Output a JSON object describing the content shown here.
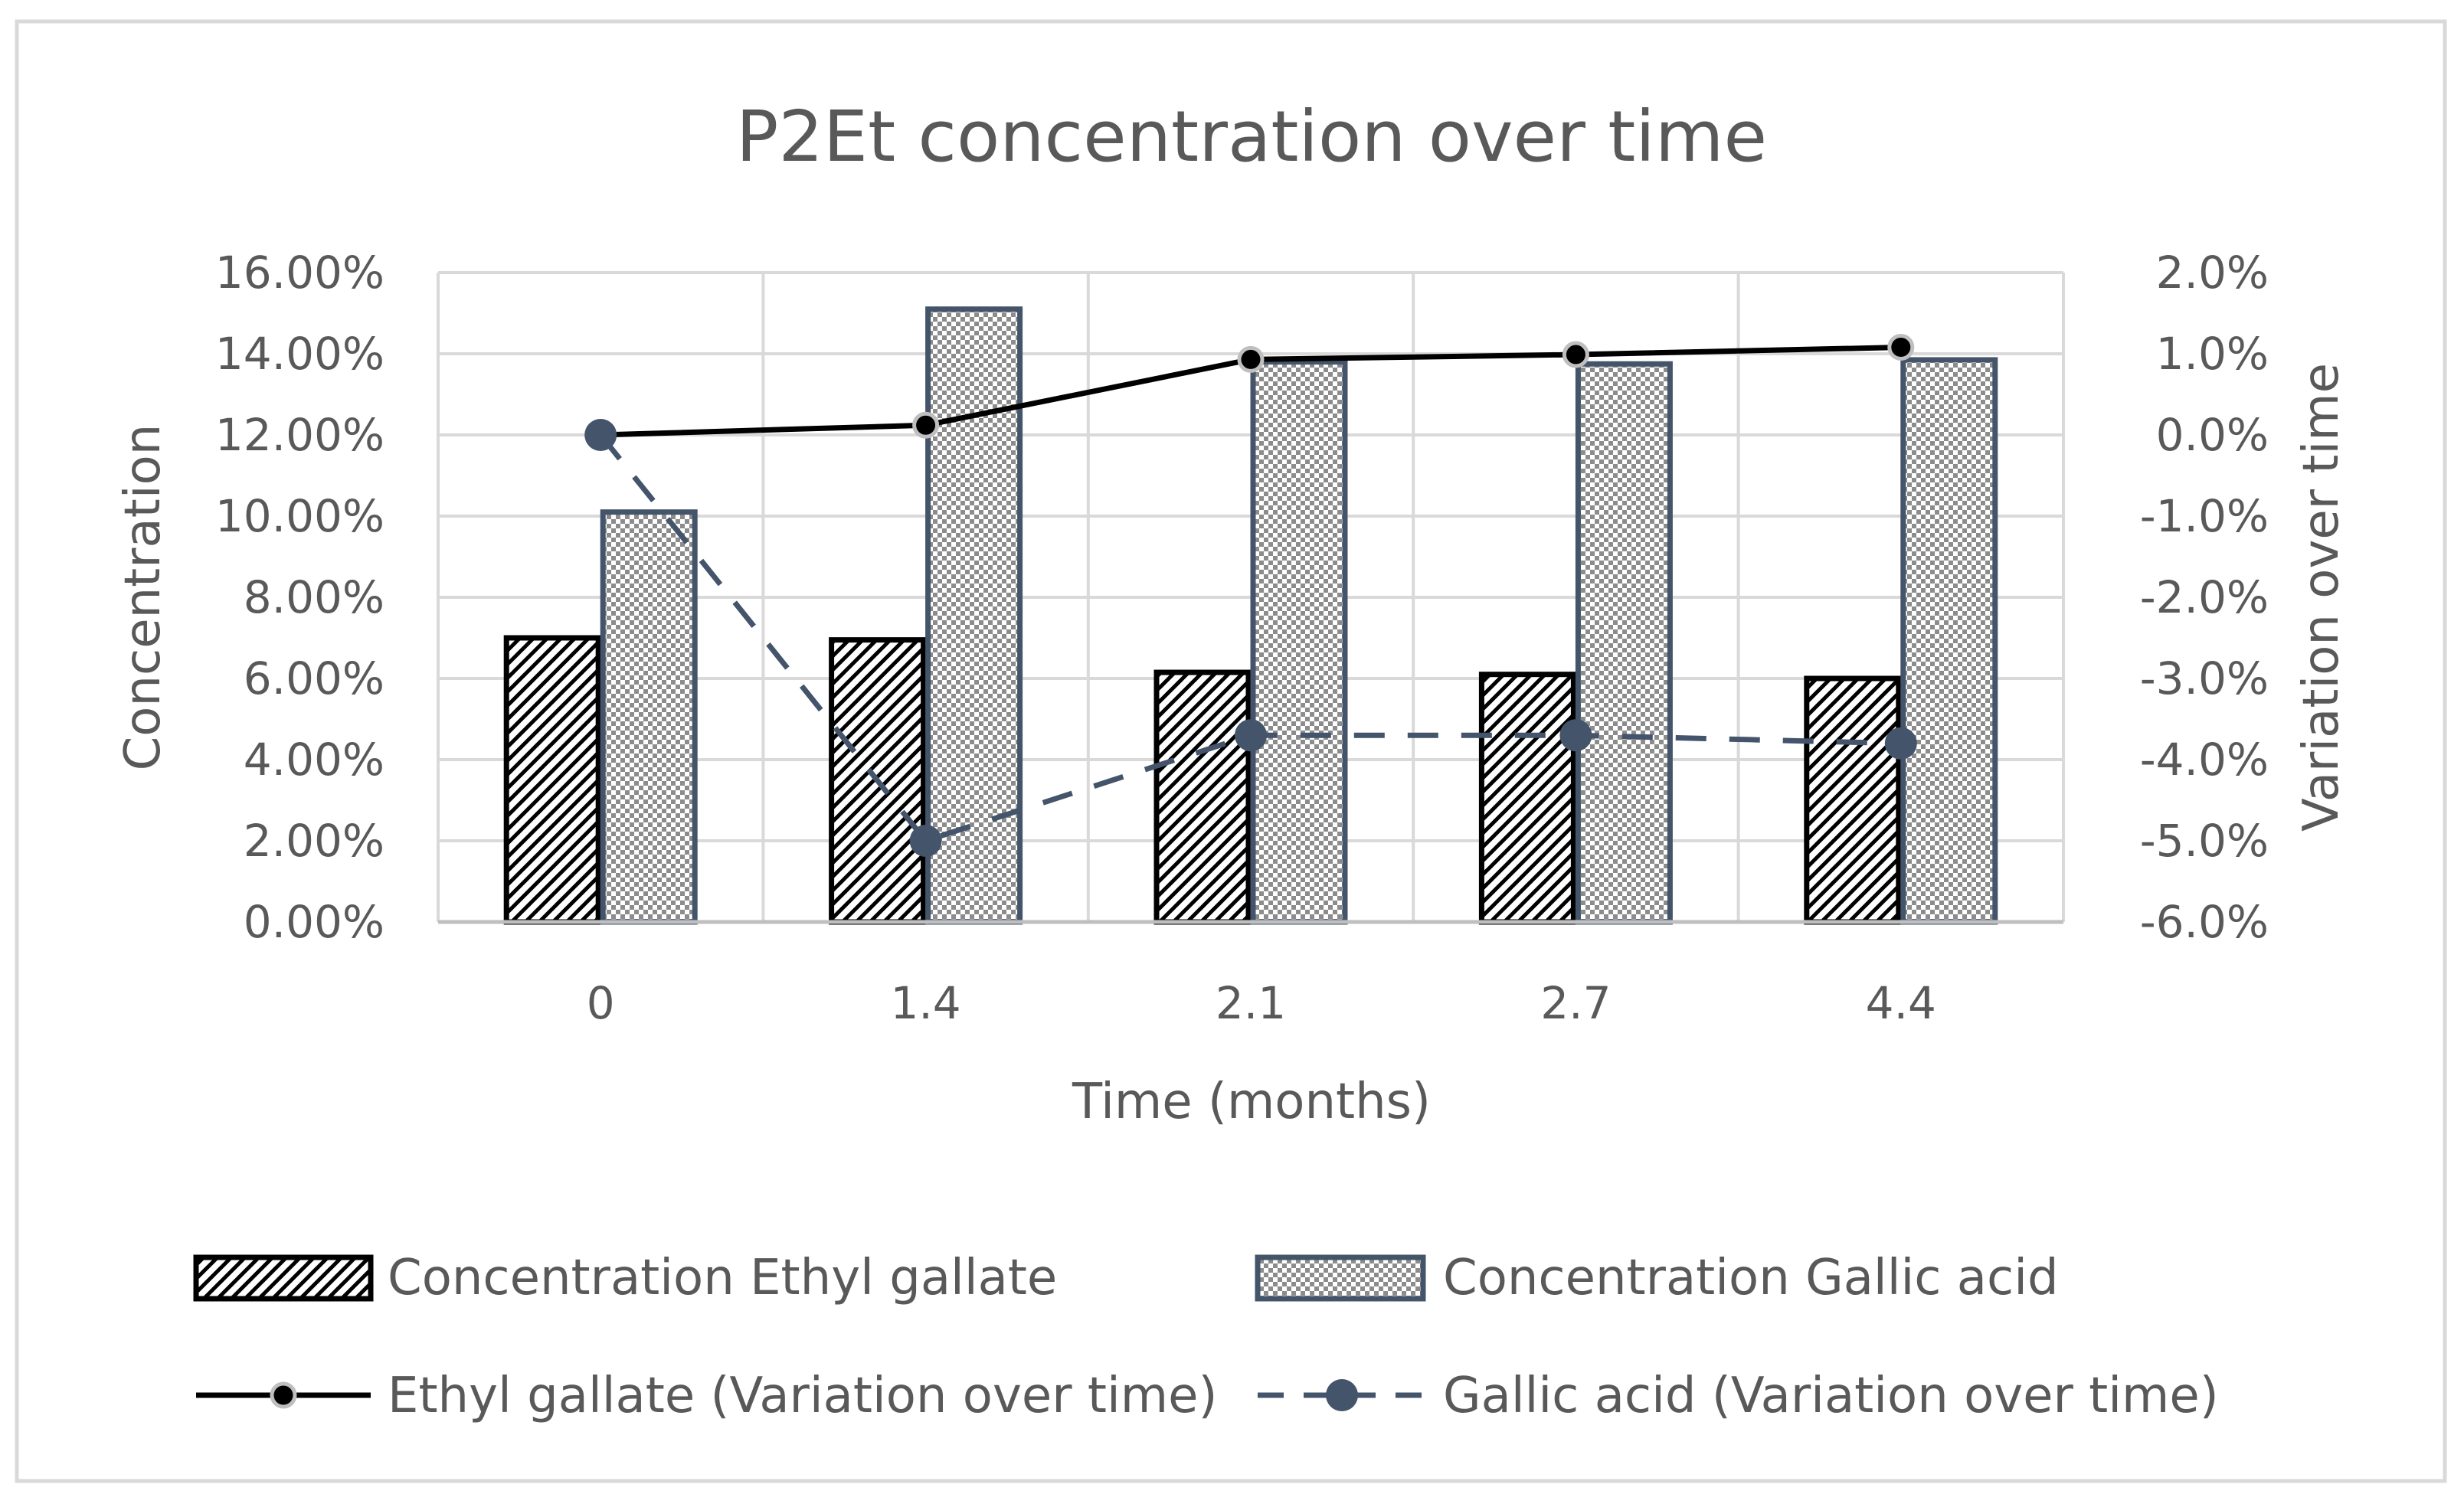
{
  "chart_data": {
    "type": "bar",
    "title": "P2Et concentration over time",
    "xlabel": "Time (months)",
    "ylabel": "Concentration",
    "y2label": "Variation over time",
    "categories": [
      "0",
      "1.4",
      "2.1",
      "2.7",
      "4.4"
    ],
    "ylim": [
      0,
      0.16
    ],
    "y_ticks": [
      0,
      0.02,
      0.04,
      0.06,
      0.08,
      0.1,
      0.12,
      0.14,
      0.16
    ],
    "y_tick_labels": [
      "0.00%",
      "2.00%",
      "4.00%",
      "6.00%",
      "8.00%",
      "10.00%",
      "12.00%",
      "14.00%",
      "16.00%"
    ],
    "y2lim": [
      -0.06,
      0.02
    ],
    "y2_ticks": [
      -0.06,
      -0.05,
      -0.04,
      -0.03,
      -0.02,
      -0.01,
      0,
      0.01,
      0.02
    ],
    "y2_tick_labels": [
      "-6.0%",
      "-5.0%",
      "-4.0%",
      "-3.0%",
      "-2.0%",
      "-1.0%",
      "0.0%",
      "1.0%",
      "2.0%"
    ],
    "grid": true,
    "legend_position": "bottom",
    "series": [
      {
        "name": "Concentration Ethyl gallate",
        "kind": "bar",
        "axis": "left",
        "pattern": "diagonal-hatch",
        "color": "#000000",
        "values": [
          0.07,
          0.0695,
          0.0615,
          0.061,
          0.06
        ]
      },
      {
        "name": "Concentration Gallic acid",
        "kind": "bar",
        "axis": "left",
        "pattern": "checker",
        "color": "#44546A",
        "values": [
          0.101,
          0.151,
          0.138,
          0.1375,
          0.1385
        ]
      },
      {
        "name": "Ethyl gallate (Variation over time)",
        "kind": "line",
        "axis": "right",
        "style": "solid",
        "color": "#000000",
        "values": [
          0.0,
          0.0012,
          0.0093,
          0.0099,
          0.0108
        ]
      },
      {
        "name": "Gallic acid (Variation over time)",
        "kind": "line",
        "axis": "right",
        "style": "dashed",
        "color": "#44546A",
        "values": [
          0.0,
          -0.05,
          -0.037,
          -0.037,
          -0.038
        ]
      }
    ]
  }
}
